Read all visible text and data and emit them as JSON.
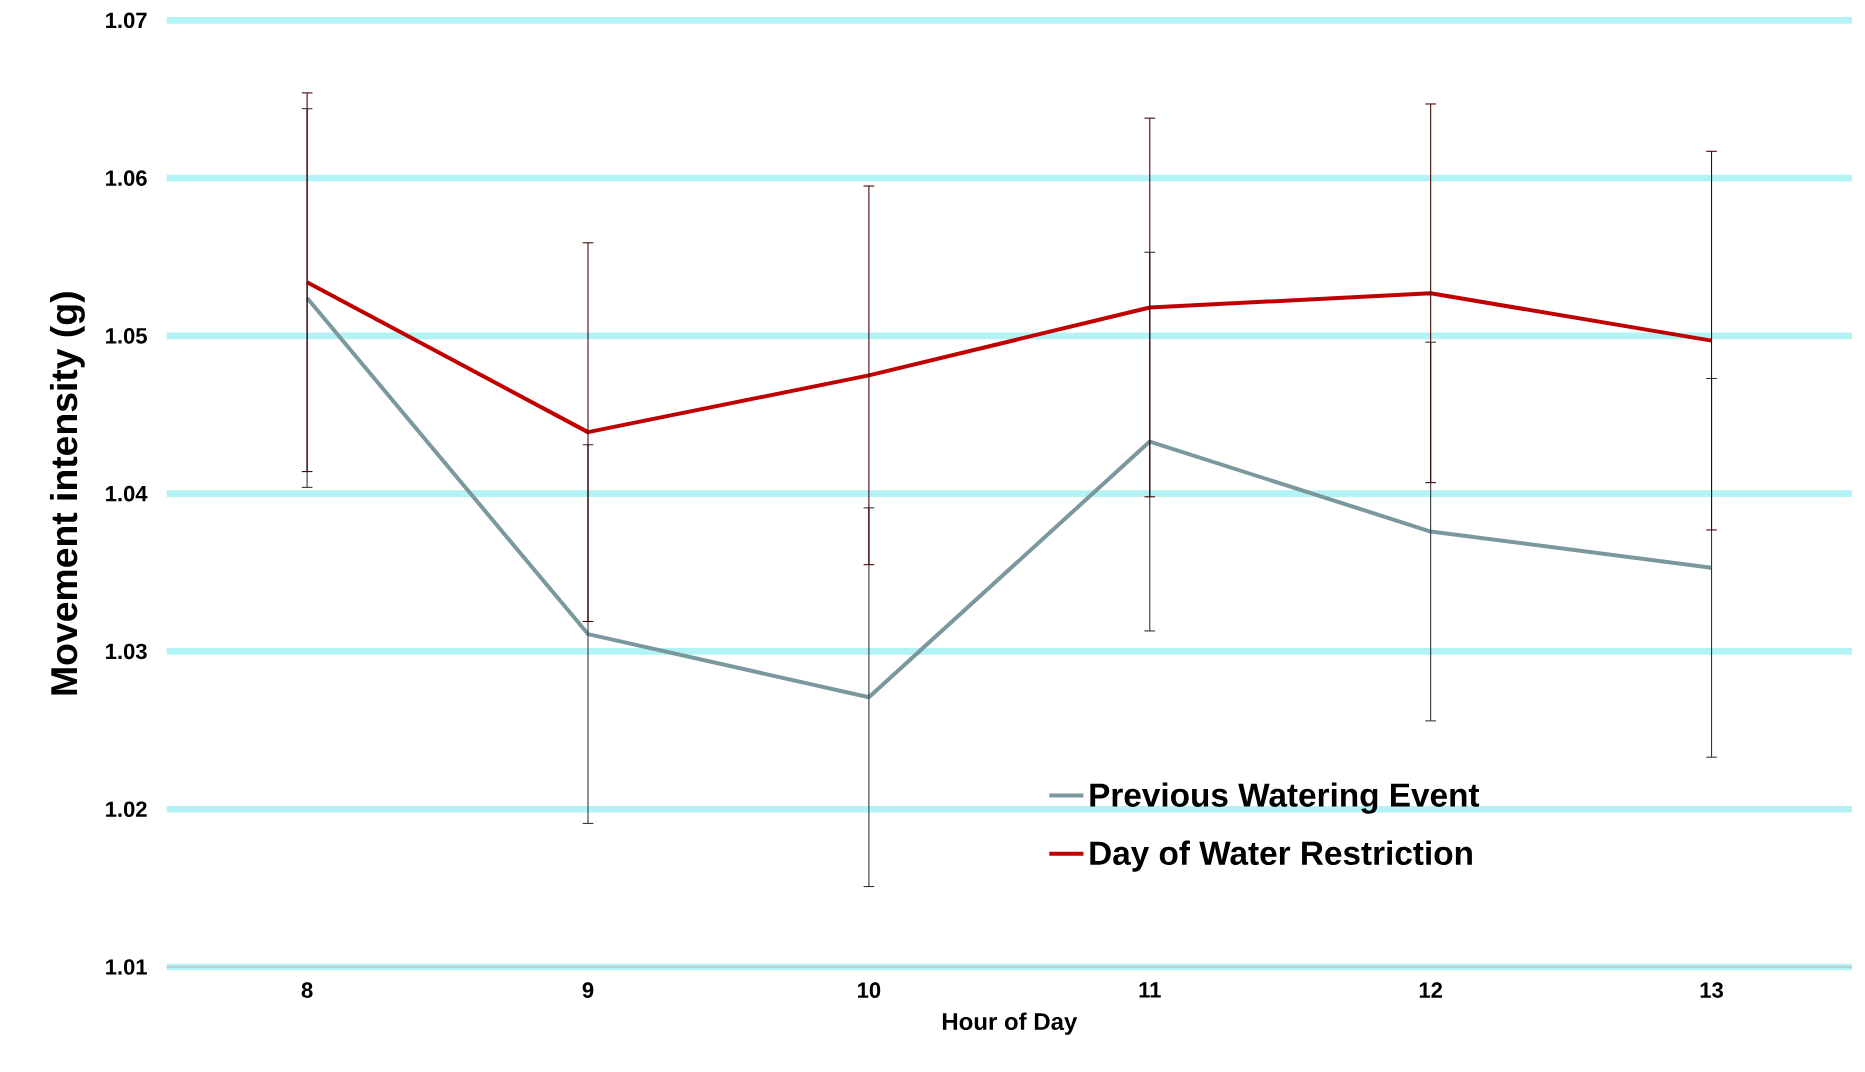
{
  "chart_data": {
    "type": "line",
    "xlabel": "Hour of Day",
    "ylabel": "Movement intensity (g)",
    "categories": [
      "8",
      "9",
      "10",
      "11",
      "12",
      "13"
    ],
    "series": [
      {
        "name": "Previous Watering Event",
        "color": "#7a989d",
        "values": [
          1.0524,
          1.0311,
          1.0271,
          1.0433,
          1.0376,
          1.0353
        ],
        "errors": [
          0.012,
          0.012,
          0.012,
          0.012,
          0.012,
          0.012
        ]
      },
      {
        "name": "Day of Water Restriction",
        "color": "#c00000",
        "values": [
          1.0534,
          1.0439,
          1.0475,
          1.0518,
          1.0527,
          1.0497
        ],
        "errors": [
          0.012,
          0.012,
          0.012,
          0.012,
          0.012,
          0.012
        ]
      }
    ],
    "ylim": [
      1.01,
      1.07
    ],
    "yticks": [
      1.01,
      1.02,
      1.03,
      1.04,
      1.05,
      1.06,
      1.07
    ],
    "grid": "y",
    "legend": "bottom right",
    "marker": "none",
    "line_style": "solid"
  }
}
